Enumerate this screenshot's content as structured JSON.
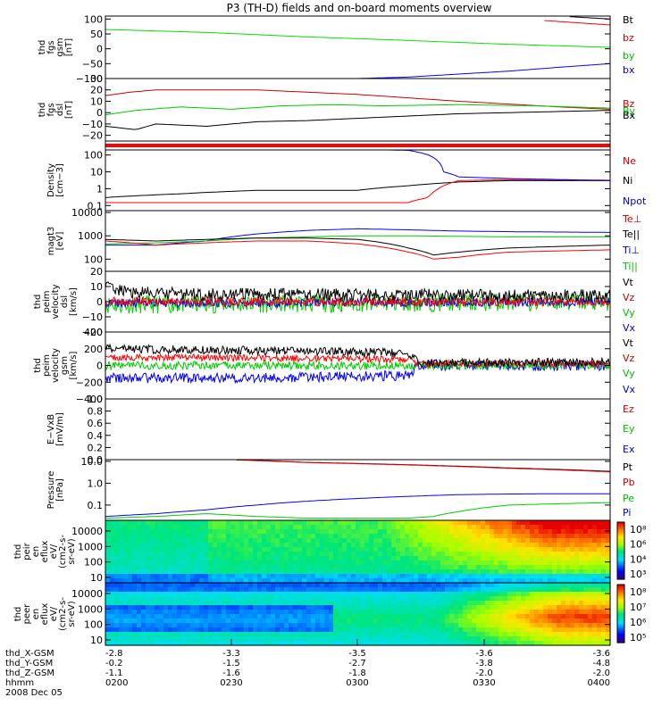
{
  "title": "P3 (TH-D) fields and on-board moments overview",
  "colorbars": [
    {
      "tick_labels": [
        "10⁸",
        "10⁶",
        "10⁴",
        "10³"
      ]
    },
    {
      "tick_labels": [
        "10⁸",
        "10⁷",
        "10⁶",
        "10⁵"
      ]
    }
  ],
  "ephemeris": {
    "rows": [
      {
        "label": "thd_X-GSM",
        "values": [
          "-2.8",
          "-3.3",
          "-3.5",
          "-3.6",
          "-3.6"
        ]
      },
      {
        "label": "thd_Y-GSM",
        "values": [
          "-0.2",
          "-1.5",
          "-2.7",
          "-3.8",
          "-4.8"
        ]
      },
      {
        "label": "thd_Z-GSM",
        "values": [
          "-1.1",
          "-1.6",
          "-1.8",
          "-2.0",
          "-2.0"
        ]
      },
      {
        "label": "hhmm",
        "values": [
          "0200",
          "0230",
          "0300",
          "0330",
          "0400"
        ]
      }
    ],
    "date": "2008 Dec 05"
  },
  "chart_data": [
    {
      "type": "line",
      "ylabel": [
        "thd",
        "fgs",
        "gsm",
        "[nT]"
      ],
      "yticks": [
        "100",
        "50",
        "0",
        "−50",
        "−100"
      ],
      "ylim": [
        -100,
        110
      ],
      "legend": [
        {
          "label": "Bt",
          "color": "#000000"
        },
        {
          "label": "bz",
          "color": "#cc0000"
        },
        {
          "label": "by",
          "color": "#00bb00"
        },
        {
          "label": "bx",
          "color": "#0000cc"
        }
      ],
      "series": [
        {
          "color": "#00e000",
          "x": [
            0,
            0.2,
            0.4,
            0.6,
            0.8,
            1.0
          ],
          "y": [
            65,
            55,
            40,
            28,
            15,
            5
          ]
        },
        {
          "color": "#0000ff",
          "x": [
            0.5,
            0.6,
            0.7,
            0.8,
            0.9,
            1.0
          ],
          "y": [
            -100,
            -95,
            -85,
            -75,
            -62,
            -50
          ]
        },
        {
          "color": "#ff0000",
          "x": [
            0.87,
            0.93,
            1.0
          ],
          "y": [
            95,
            88,
            80
          ]
        },
        {
          "color": "#000000",
          "x": [
            0.92,
            1.0
          ],
          "y": [
            108,
            100
          ]
        }
      ]
    },
    {
      "type": "line",
      "ylabel": [
        "thd",
        "fgs",
        "dsl",
        "[nT]"
      ],
      "yticks": [
        "30",
        "20",
        "10",
        "0",
        "−10",
        "−20"
      ],
      "ylim": [
        -25,
        30
      ],
      "legend": [
        {
          "label": "Bz",
          "color": "#cc0000"
        },
        {
          "label": "By",
          "color": "#00bb00"
        },
        {
          "label": "Bx",
          "color": "#000000"
        }
      ],
      "series": [
        {
          "color": "#cc0000",
          "x": [
            0,
            0.05,
            0.1,
            0.3,
            0.5,
            0.7,
            0.9,
            1.0
          ],
          "y": [
            15,
            18,
            20,
            20,
            16,
            10,
            5,
            3
          ]
        },
        {
          "color": "#00cc00",
          "x": [
            0,
            0.06,
            0.15,
            0.25,
            0.35,
            0.45,
            0.55,
            0.7,
            0.85,
            1.0
          ],
          "y": [
            -2,
            2,
            5,
            3,
            6,
            7,
            6,
            7,
            6,
            4
          ]
        },
        {
          "color": "#000000",
          "x": [
            0,
            0.06,
            0.1,
            0.2,
            0.3,
            0.4,
            0.5,
            0.6,
            0.7,
            0.8,
            0.9,
            1.0
          ],
          "y": [
            -12,
            -15,
            -10,
            -12,
            -8,
            -7,
            -5,
            -3,
            -1,
            0,
            1,
            2
          ]
        }
      ]
    },
    {
      "type": "bar",
      "color": "#ff0000"
    },
    {
      "type": "line",
      "ylabel": [
        "Density",
        "[cm−3]"
      ],
      "yticks": [
        "100",
        "10",
        "1",
        "0.1"
      ],
      "ylog": true,
      "ylim": [
        0.05,
        200
      ],
      "legend": [
        {
          "label": "Ne",
          "color": "#cc0000"
        },
        {
          "label": "Ni",
          "color": "#000000"
        },
        {
          "label": "Npot",
          "color": "#0000cc"
        }
      ],
      "series": [
        {
          "color": "#000000",
          "x": [
            0,
            0.15,
            0.3,
            0.5,
            0.6,
            0.7,
            0.8,
            1.0
          ],
          "y": [
            0.3,
            0.5,
            0.8,
            0.8,
            1.5,
            2.5,
            3,
            3
          ]
        },
        {
          "color": "#ff0000",
          "x": [
            0,
            0.3,
            0.5,
            0.6,
            0.64,
            0.66,
            0.7,
            0.8,
            1.0
          ],
          "y": [
            0.15,
            0.15,
            0.15,
            0.15,
            0.3,
            1,
            3,
            3.5,
            3.2
          ]
        },
        {
          "color": "#0000ff",
          "x": [
            0.56,
            0.6,
            0.64,
            0.67,
            0.7,
            0.8,
            1.0
          ],
          "y": [
            200,
            190,
            100,
            10,
            5,
            4,
            3
          ]
        }
      ]
    },
    {
      "type": "line",
      "ylabel": [
        "magt3",
        "[eV]"
      ],
      "yticks": [
        "10000",
        "1000",
        "100"
      ],
      "ylog": true,
      "ylim": [
        30,
        12000
      ],
      "legend": [
        {
          "label": "Te⊥",
          "color": "#cc0000"
        },
        {
          "label": "Te||",
          "color": "#000000"
        },
        {
          "label": "Ti⊥",
          "color": "#0000cc"
        },
        {
          "label": "Ti||",
          "color": "#00bb00"
        }
      ],
      "series": [
        {
          "color": "#0000ff",
          "x": [
            0,
            0.1,
            0.2,
            0.3,
            0.4,
            0.5,
            0.6,
            0.7,
            0.8,
            1.0
          ],
          "y": [
            400,
            400,
            600,
            1200,
            1700,
            2000,
            1800,
            1600,
            1500,
            1400
          ]
        },
        {
          "color": "#00cc00",
          "x": [
            0,
            0.1,
            0.2,
            0.3,
            0.4,
            0.5,
            0.6,
            0.7,
            0.8,
            1.0
          ],
          "y": [
            450,
            500,
            600,
            800,
            900,
            1000,
            1000,
            950,
            900,
            900
          ]
        },
        {
          "color": "#000000",
          "x": [
            0,
            0.1,
            0.2,
            0.3,
            0.4,
            0.5,
            0.6,
            0.65,
            0.7,
            0.8,
            1.0
          ],
          "y": [
            700,
            600,
            700,
            800,
            800,
            700,
            300,
            150,
            200,
            300,
            400
          ]
        },
        {
          "color": "#ff0000",
          "x": [
            0,
            0.1,
            0.2,
            0.3,
            0.4,
            0.5,
            0.6,
            0.65,
            0.7,
            0.8,
            1.0
          ],
          "y": [
            600,
            400,
            500,
            600,
            600,
            450,
            200,
            100,
            120,
            200,
            250
          ]
        }
      ]
    },
    {
      "type": "line",
      "ylabel": [
        "thd",
        "peim",
        "velocity",
        "dsl",
        "[km/s]"
      ],
      "yticks": [
        "20",
        "10",
        "0",
        "−10",
        "−20"
      ],
      "ylim": [
        -20,
        20
      ],
      "legend": [
        {
          "label": "Vt",
          "color": "#000000"
        },
        {
          "label": "Vz",
          "color": "#cc0000"
        },
        {
          "label": "Vy",
          "color": "#00bb00"
        },
        {
          "label": "Vx",
          "color": "#0000cc"
        }
      ],
      "series": [
        {
          "color": "#00cc00",
          "x": [
            0,
            1.0
          ],
          "y": [
            -2,
            0
          ],
          "noise": 6
        },
        {
          "color": "#0000ff",
          "x": [
            0,
            1.0
          ],
          "y": [
            -1,
            0
          ],
          "noise": 3
        },
        {
          "color": "#ff0000",
          "x": [
            0,
            1.0
          ],
          "y": [
            0,
            0
          ],
          "noise": 3
        },
        {
          "color": "#000000",
          "x": [
            0,
            0.05,
            0.2,
            1.0
          ],
          "y": [
            10,
            6,
            5,
            4
          ],
          "noise": 4
        }
      ]
    },
    {
      "type": "line",
      "ylabel": [
        "thd",
        "peim",
        "velocity",
        "gsm",
        "[km/s]"
      ],
      "yticks": [
        "400",
        "200",
        "0",
        "−200",
        "−400"
      ],
      "ylim": [
        -400,
        400
      ],
      "legend": [
        {
          "label": "Vt",
          "color": "#000000"
        },
        {
          "label": "Vz",
          "color": "#cc0000"
        },
        {
          "label": "Vy",
          "color": "#00bb00"
        },
        {
          "label": "Vx",
          "color": "#0000cc"
        }
      ],
      "series": [
        {
          "color": "#0000ff",
          "x": [
            0,
            0.3,
            0.6,
            0.62,
            1.0
          ],
          "y": [
            -150,
            -150,
            -120,
            0,
            0
          ],
          "noise": 60
        },
        {
          "color": "#00cc00",
          "x": [
            0,
            0.3,
            0.6,
            0.62,
            1.0
          ],
          "y": [
            0,
            0,
            0,
            0,
            0
          ],
          "noise": 50
        },
        {
          "color": "#ff0000",
          "x": [
            0,
            0.3,
            0.6,
            0.62,
            1.0
          ],
          "y": [
            100,
            90,
            70,
            20,
            20
          ],
          "noise": 40
        },
        {
          "color": "#000000",
          "x": [
            0,
            0.3,
            0.6,
            0.62,
            1.0
          ],
          "y": [
            200,
            180,
            150,
            30,
            40
          ],
          "noise": 50
        }
      ]
    },
    {
      "type": "line",
      "ylabel": [
        "E−VxB",
        "[mV/m]"
      ],
      "yticks": [
        "1.0",
        "0.8",
        "0.6",
        "0.4",
        "0.2",
        "0.0"
      ],
      "ylim": [
        0,
        1
      ],
      "legend": [
        {
          "label": "Ez",
          "color": "#cc0000"
        },
        {
          "label": "Ey",
          "color": "#00bb00"
        },
        {
          "label": "Ex",
          "color": "#0000cc"
        }
      ],
      "series": []
    },
    {
      "type": "line",
      "ylabel": [
        "Pressure",
        "[nPa]"
      ],
      "yticks": [
        "10.0",
        "1.0",
        "0.1"
      ],
      "ylog": true,
      "ylim": [
        0.02,
        12
      ],
      "legend": [
        {
          "label": "Pt",
          "color": "#000000"
        },
        {
          "label": "Pb",
          "color": "#cc0000"
        },
        {
          "label": "Pe",
          "color": "#00bb00"
        },
        {
          "label": "Pi",
          "color": "#0000cc"
        }
      ],
      "series": [
        {
          "color": "#0000ff",
          "x": [
            0,
            0.1,
            0.2,
            0.3,
            0.4,
            0.5,
            0.6,
            0.7,
            0.8,
            0.9,
            1.0
          ],
          "y": [
            0.03,
            0.04,
            0.06,
            0.1,
            0.15,
            0.2,
            0.25,
            0.3,
            0.32,
            0.33,
            0.33
          ]
        },
        {
          "color": "#00cc00",
          "x": [
            0,
            0.1,
            0.2,
            0.3,
            0.4,
            0.5,
            0.6,
            0.65,
            0.7,
            0.8,
            1.0
          ],
          "y": [
            0.025,
            0.03,
            0.04,
            0.03,
            0.025,
            0.025,
            0.025,
            0.03,
            0.05,
            0.1,
            0.13
          ]
        },
        {
          "color": "#000000",
          "x": [
            0.26,
            0.4,
            0.6,
            0.8,
            1.0
          ],
          "y": [
            12,
            9,
            7,
            5,
            3.5
          ]
        },
        {
          "color": "#ff0000",
          "x": [
            0.26,
            0.4,
            0.6,
            0.8,
            1.0
          ],
          "y": [
            11.5,
            8.8,
            6.8,
            4.8,
            3.3
          ]
        }
      ]
    },
    {
      "type": "heatmap",
      "ylabel": [
        "thd",
        "peir",
        "en",
        "eflux",
        "eV/",
        "(cm2-s-",
        "sr-eV)"
      ],
      "yticks": [
        "10000",
        "1000",
        "100",
        "10"
      ],
      "ylog": true
    },
    {
      "type": "heatmap",
      "ylabel": [
        "thd",
        "peer",
        "en",
        "eflux",
        "eV/",
        "(cm2-s-",
        "sr-eV)"
      ],
      "yticks": [
        "10000",
        "1000",
        "100",
        "10"
      ],
      "ylog": true
    }
  ]
}
